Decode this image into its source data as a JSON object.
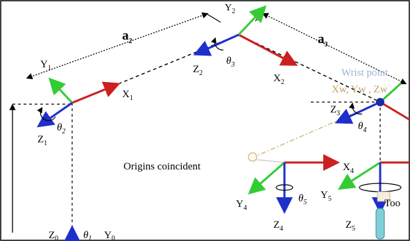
{
  "labels": {
    "a2": {
      "base": "a",
      "sub": "2"
    },
    "a3": {
      "base": "a",
      "sub": "3"
    },
    "y1": {
      "base": "Y",
      "sub": "1"
    },
    "z1": {
      "base": "Z",
      "sub": "1"
    },
    "x1": {
      "base": "X",
      "sub": "1"
    },
    "theta2": {
      "base": "θ",
      "sub": "2"
    },
    "y2": {
      "base": "Y",
      "sub": "2"
    },
    "z2": {
      "base": "Z",
      "sub": "2"
    },
    "x2": {
      "base": "X",
      "sub": "2"
    },
    "theta3": {
      "base": "θ",
      "sub": "3"
    },
    "z3": {
      "base": "Z",
      "sub": "3"
    },
    "theta4": {
      "base": "θ",
      "sub": "4"
    },
    "x4": {
      "base": "X",
      "sub": "4"
    },
    "y4": {
      "base": "Y",
      "sub": "4"
    },
    "z4": {
      "base": "Z",
      "sub": "4"
    },
    "theta5": {
      "base": "θ",
      "sub": "5"
    },
    "y5": {
      "base": "Y",
      "sub": "5"
    },
    "z5": {
      "base": "Z",
      "sub": "5"
    },
    "z0": {
      "base": "Z",
      "sub": "0"
    },
    "theta1": {
      "base": "θ",
      "sub": "1"
    },
    "y0": {
      "base": "Y",
      "sub": "0"
    },
    "wrist_point": "Wrist point",
    "wrist_coords": "Xw, Yw , Zw",
    "origins_coincident": "Origins coincident",
    "tool": "Too"
  },
  "colors": {
    "x_axis": "#cc1f1f",
    "y_axis": "#33cc33",
    "z_axis": "#1f2fcc",
    "link": "#000000",
    "wrist_label": "#9fb3d3",
    "wrist_coords_label": "#c4a06a",
    "wrist_dot": "#1a2aa8"
  }
}
